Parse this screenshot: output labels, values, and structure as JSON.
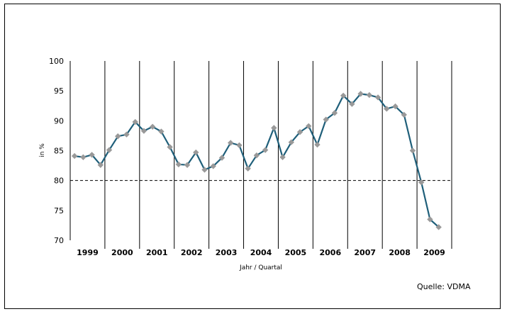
{
  "chart_data": {
    "type": "line",
    "ylabel": "in %",
    "xlabel": "Jahr / Quartal",
    "source": "Quelle: VDMA",
    "ylim": [
      70,
      100
    ],
    "yticks": [
      70,
      75,
      80,
      85,
      90,
      95,
      100
    ],
    "reference_line": 80,
    "years": [
      "1999",
      "2000",
      "2001",
      "2002",
      "2003",
      "2004",
      "2005",
      "2006",
      "2007",
      "2008",
      "2009"
    ],
    "series": [
      {
        "values": [
          84.1,
          83.9,
          84.3,
          82.6,
          85.1,
          87.4,
          87.7,
          89.8,
          88.3,
          89.0,
          88.2,
          85.6,
          82.7,
          82.6,
          84.7,
          81.8,
          82.4,
          83.8,
          86.3,
          85.9,
          82.0,
          84.2,
          85.1,
          88.8,
          83.9,
          86.4,
          88.1,
          89.1,
          86.0,
          90.2,
          91.3,
          94.2,
          92.8,
          94.5,
          94.3,
          93.9,
          92.0,
          92.4,
          91.0,
          85.0,
          79.7,
          73.5,
          72.2
        ]
      }
    ],
    "colors": {
      "line": "#1f5f7a",
      "marker": "#999999"
    }
  }
}
